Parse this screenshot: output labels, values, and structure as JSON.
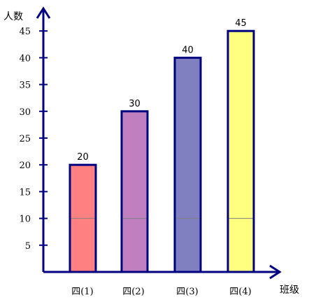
{
  "chart_data": {
    "type": "bar",
    "title": "",
    "ylabel": "人数",
    "xlabel": "班级",
    "categories": [
      "四(1)",
      "四(2)",
      "四(3)",
      "四(4)"
    ],
    "values": [
      20,
      30,
      40,
      45
    ],
    "data_labels": [
      "20",
      "30",
      "40",
      "45"
    ],
    "y_ticks": [
      5,
      10,
      15,
      20,
      25,
      30,
      35,
      40,
      45
    ],
    "ylim": [
      0,
      50
    ],
    "grid": false,
    "legend": "none",
    "colors": {
      "axis": "#000080",
      "bar_outline": "#000080",
      "bars": [
        "#ff8080",
        "#c080c0",
        "#8080c0",
        "#ffff80"
      ],
      "reference_line": "#808080"
    },
    "reference_line_value": 10
  }
}
